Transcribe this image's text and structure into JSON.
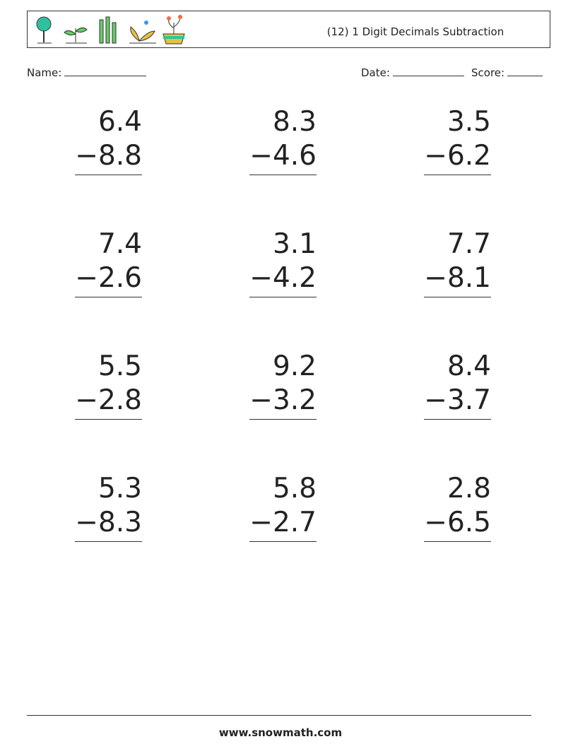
{
  "header": {
    "title": "(12) 1 Digit Decimals Subtraction"
  },
  "fields": {
    "name": "Name:",
    "date": "Date:",
    "score": "Score:"
  },
  "problems": [
    {
      "top": "6.4",
      "bottom": "−8.8"
    },
    {
      "top": "8.3",
      "bottom": "−4.6"
    },
    {
      "top": "3.5",
      "bottom": "−6.2"
    },
    {
      "top": "7.4",
      "bottom": "−2.6"
    },
    {
      "top": "3.1",
      "bottom": "−4.2"
    },
    {
      "top": "7.7",
      "bottom": "−8.1"
    },
    {
      "top": "5.5",
      "bottom": "−2.8"
    },
    {
      "top": "9.2",
      "bottom": "−3.2"
    },
    {
      "top": "8.4",
      "bottom": "−3.7"
    },
    {
      "top": "5.3",
      "bottom": "−8.3"
    },
    {
      "top": "5.8",
      "bottom": "−2.7"
    },
    {
      "top": "2.8",
      "bottom": "−6.5"
    }
  ],
  "footer": {
    "site": "www.snowmath.com"
  }
}
